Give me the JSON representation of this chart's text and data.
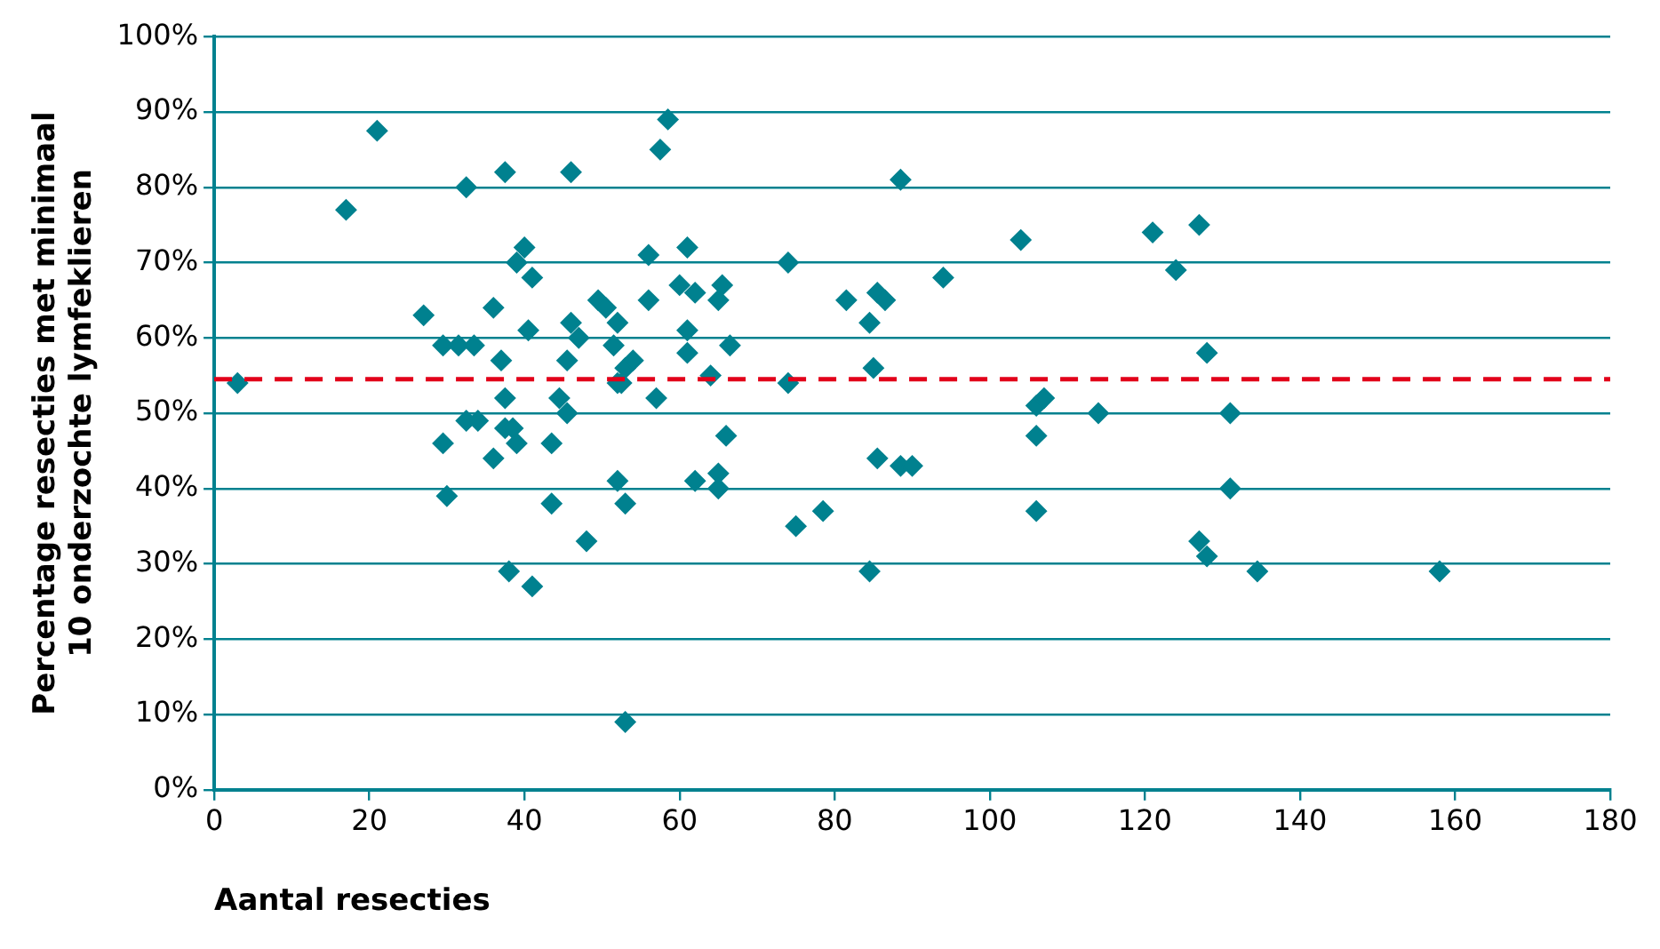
{
  "chart_data": {
    "type": "scatter",
    "xlabel": "Aantal resecties",
    "ylabel": "Percentage resecties met minimaal\n10 onderzochte lymfeklieren",
    "series": [
      {
        "color": "#00818f",
        "x": [
          3,
          17,
          21,
          27,
          29.5,
          31.5,
          33.5,
          29.5,
          30,
          32.5,
          32.5,
          34,
          36,
          36,
          37,
          37.5,
          37.5,
          37.5,
          38.5,
          38,
          39,
          39,
          40,
          40.5,
          41,
          41,
          43.5,
          43.5,
          44.5,
          45.5,
          45.5,
          46,
          46,
          47,
          48,
          49.5,
          50.5,
          51.5,
          52,
          52,
          52,
          52.5,
          53,
          53,
          53,
          54,
          56,
          56,
          57,
          57.5,
          58.5,
          60,
          61,
          61,
          61,
          62,
          62,
          64,
          65,
          65,
          65,
          65.5,
          66,
          66.5,
          74,
          74,
          75,
          78.5,
          81.5,
          84.5,
          84.5,
          85,
          85.5,
          86.5,
          85.5,
          88.5,
          90,
          88.5,
          94,
          104,
          106,
          106,
          106,
          107,
          114,
          121,
          124,
          127,
          127,
          128,
          128,
          131,
          131,
          134.5,
          158
        ],
        "values": [
          54,
          77,
          87.5,
          63,
          59,
          59,
          59,
          46,
          39,
          80,
          49,
          49,
          64,
          44,
          57,
          82,
          52,
          48,
          48,
          29,
          46,
          70,
          72,
          61,
          68,
          27,
          46,
          38,
          52,
          57,
          50,
          82,
          62,
          60,
          33,
          65,
          64,
          59,
          62,
          41,
          54,
          54,
          9,
          38,
          56,
          57,
          71,
          65,
          52,
          85,
          89,
          67,
          72,
          61,
          58,
          66,
          41,
          55,
          65,
          42,
          40,
          67,
          47,
          59,
          70,
          54,
          35,
          37,
          65,
          62,
          29,
          56,
          66,
          65,
          44,
          43,
          43,
          81,
          68,
          73,
          47,
          37,
          51,
          52,
          50,
          74,
          69,
          75,
          33,
          31,
          58,
          50,
          40,
          29,
          29
        ]
      }
    ],
    "xlim": [
      0,
      180
    ],
    "xticks": [
      0,
      20,
      40,
      60,
      80,
      100,
      120,
      140,
      160,
      180
    ],
    "ylim": [
      0,
      100
    ],
    "yticks": [
      {
        "value": 0,
        "label": "0%"
      },
      {
        "value": 10,
        "label": "10%"
      },
      {
        "value": 20,
        "label": "20%"
      },
      {
        "value": 30,
        "label": "30%"
      },
      {
        "value": 40,
        "label": "40%"
      },
      {
        "value": 50,
        "label": "50%"
      },
      {
        "value": 60,
        "label": "60%"
      },
      {
        "value": 70,
        "label": "70%"
      },
      {
        "value": 80,
        "label": "80%"
      },
      {
        "value": 90,
        "label": "90%"
      },
      {
        "value": 100,
        "label": "100%"
      }
    ],
    "ref_lines": [
      {
        "axis": "y",
        "value": 54.5,
        "color": "#e2001a",
        "line_style": "dashed"
      }
    ],
    "grid": "y",
    "marker": "diamond",
    "legend": false
  }
}
